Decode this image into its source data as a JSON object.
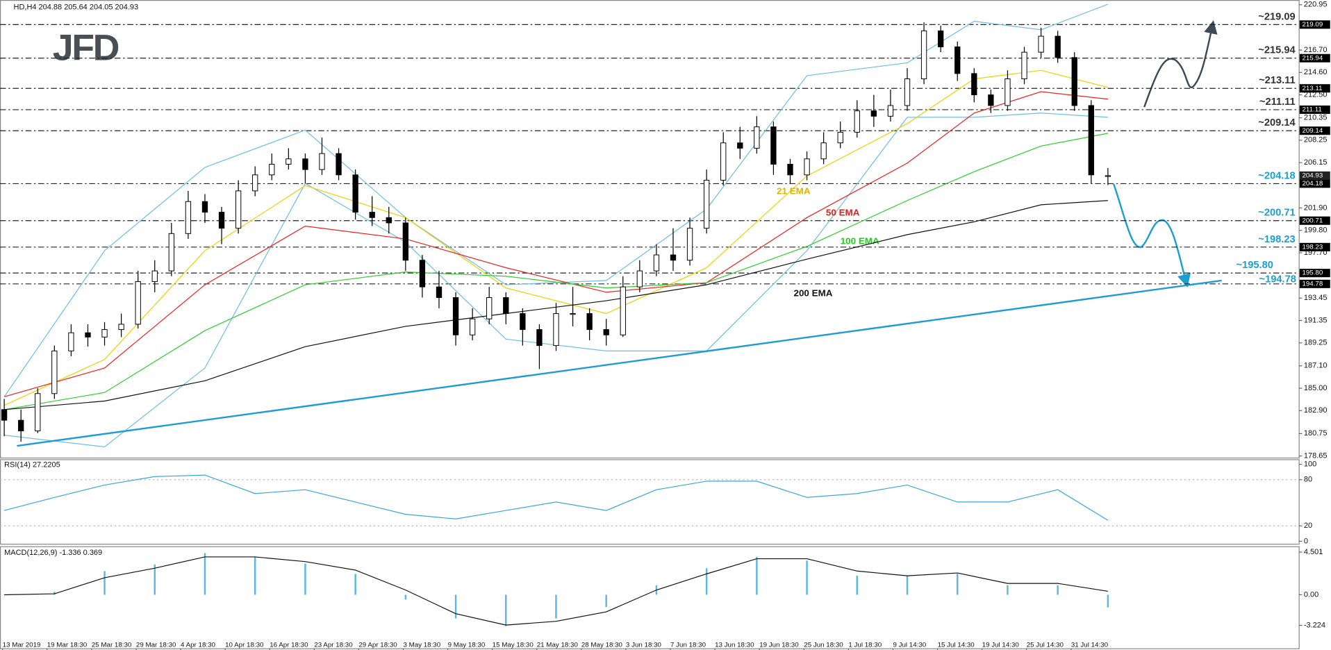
{
  "header": "HD,H4  204.88 205.64 204.05 204.93",
  "logo": "JFD",
  "chart_data": [
    {
      "type": "candlestick",
      "ohlc": [
        [
          183,
          184,
          180.5,
          182
        ],
        [
          182,
          183,
          180,
          181
        ],
        [
          181,
          185,
          180.8,
          184.5
        ],
        [
          184.5,
          189,
          184,
          188.5
        ],
        [
          188.5,
          191,
          188,
          190.2
        ],
        [
          190.2,
          191,
          188.9,
          189.8
        ],
        [
          189.8,
          191.2,
          189,
          190.5
        ],
        [
          190.5,
          192,
          189.8,
          191
        ],
        [
          191,
          196,
          190.6,
          195
        ],
        [
          195,
          197,
          194,
          196
        ],
        [
          196,
          200.5,
          195.5,
          199.5
        ],
        [
          199.5,
          203.5,
          199,
          202.5
        ],
        [
          202.5,
          203.2,
          200.5,
          201.5
        ],
        [
          201.5,
          202,
          198.5,
          200
        ],
        [
          200,
          204.5,
          199.5,
          203.5
        ],
        [
          203.5,
          205.8,
          203,
          205
        ],
        [
          205,
          207,
          204.5,
          206
        ],
        [
          206,
          207.5,
          205.5,
          206.5
        ],
        [
          206.5,
          207,
          204.2,
          205.5
        ],
        [
          205.5,
          208.5,
          205,
          207
        ],
        [
          207,
          207.5,
          204.5,
          205
        ],
        [
          205,
          205.5,
          200.8,
          201.5
        ],
        [
          201.5,
          203,
          200.2,
          201
        ],
        [
          201,
          202,
          199.5,
          200.5
        ],
        [
          200.5,
          201,
          196,
          197
        ],
        [
          197,
          197.5,
          193.5,
          194.5
        ],
        [
          194.5,
          196,
          192.5,
          193.5
        ],
        [
          193.5,
          194,
          189,
          190
        ],
        [
          190,
          192.5,
          189.5,
          191.5
        ],
        [
          191.5,
          194.5,
          191,
          193.5
        ],
        [
          193.5,
          194,
          191,
          192
        ],
        [
          192,
          192.5,
          189,
          190.5
        ],
        [
          190.5,
          191,
          186.8,
          189
        ],
        [
          189,
          193,
          188.5,
          192
        ],
        [
          192,
          194.5,
          190.8,
          192
        ],
        [
          192,
          192.5,
          189.5,
          190.5
        ],
        [
          190.5,
          191.5,
          189,
          190
        ],
        [
          190,
          195.5,
          189.8,
          194.5
        ],
        [
          194.5,
          197,
          194,
          196
        ],
        [
          196,
          198.5,
          195.5,
          197.5
        ],
        [
          197.5,
          200,
          196,
          197
        ],
        [
          197,
          201,
          196.5,
          200
        ],
        [
          200,
          205.5,
          199.5,
          204.5
        ],
        [
          204.5,
          209,
          204,
          208
        ],
        [
          208,
          209.5,
          206.5,
          207.5
        ],
        [
          207.5,
          210.5,
          207,
          209.5
        ],
        [
          209.5,
          210,
          205,
          206
        ],
        [
          206,
          206.5,
          204.2,
          205
        ],
        [
          205,
          207.2,
          204.5,
          206.5
        ],
        [
          206.5,
          209,
          206,
          208
        ],
        [
          208,
          210,
          207.5,
          209
        ],
        [
          209,
          212,
          208.5,
          211
        ],
        [
          211,
          212.5,
          209.5,
          210.5
        ],
        [
          210.5,
          213,
          210,
          211.5
        ],
        [
          211.5,
          215,
          211,
          214
        ],
        [
          214,
          219.3,
          213.5,
          218.5
        ],
        [
          218.5,
          219,
          216.5,
          217
        ],
        [
          217,
          217.5,
          213.8,
          214.5
        ],
        [
          214.5,
          215,
          211.8,
          212.5
        ],
        [
          212.5,
          213,
          210.8,
          211.5
        ],
        [
          211.5,
          214.8,
          211,
          214
        ],
        [
          214,
          217,
          213.5,
          216.5
        ],
        [
          216.5,
          218.8,
          216,
          218
        ],
        [
          218,
          218.5,
          215.5,
          216
        ],
        [
          216,
          216.5,
          211,
          211.5
        ],
        [
          211.5,
          212,
          204.2,
          205
        ],
        [
          204.88,
          205.64,
          204.05,
          204.93
        ]
      ],
      "ylim": [
        178.5,
        221
      ],
      "yticks": [
        {
          "value": 220.95,
          "label": "220.95"
        },
        {
          "value": 216.7,
          "label": "216.70"
        },
        {
          "value": 214.6,
          "label": "214.60"
        },
        {
          "value": 212.5,
          "label": "212.50"
        },
        {
          "value": 210.35,
          "label": "210.35"
        },
        {
          "value": 208.25,
          "label": "208.25"
        },
        {
          "value": 206.15,
          "label": "206.15"
        },
        {
          "value": 201.9,
          "label": "201.90"
        },
        {
          "value": 199.8,
          "label": "199.80"
        },
        {
          "value": 197.7,
          "label": "197.70"
        },
        {
          "value": 193.45,
          "label": "193.45"
        },
        {
          "value": 191.35,
          "label": "191.35"
        },
        {
          "value": 189.25,
          "label": "189.25"
        },
        {
          "value": 187.1,
          "label": "187.10"
        },
        {
          "value": 185,
          "label": "185.00"
        },
        {
          "value": 182.9,
          "label": "182.90"
        },
        {
          "value": 180.75,
          "label": "180.75"
        },
        {
          "value": 178.65,
          "label": "178.65"
        }
      ],
      "x_labels": [
        "13 Mar 2019",
        "19 Mar 18:30",
        "25 Mar 18:30",
        "29 Mar 18:30",
        "4 Apr 18:30",
        "10 Apr 18:30",
        "16 Apr 18:30",
        "23 Apr 18:30",
        "29 Apr 18:30",
        "3 May 18:30",
        "9 May 18:30",
        "15 May 18:30",
        "21 May 18:30",
        "28 May 18:30",
        "3 Jun 18:30",
        "7 Jun 18:30",
        "13 Jun 18:30",
        "19 Jun 18:30",
        "25 Jun 18:30",
        "1 Jul 18:30",
        "9 Jul 14:30",
        "15 Jul 14:30",
        "19 Jul 14:30",
        "25 Jul 14:30",
        "31 Jul 14:30"
      ],
      "overlay_x": [
        0,
        6,
        12,
        18,
        24,
        30,
        36,
        42,
        48,
        54,
        58,
        62,
        66
      ],
      "bands": {
        "color": "#6fbde6",
        "upper": [
          184.2,
          197.9,
          205.7,
          209.2,
          201,
          194.7,
          195.1,
          201.8,
          214.3,
          215.5,
          219.4,
          218.6,
          221
        ],
        "lower": [
          180.6,
          179.5,
          186.9,
          204.2,
          198.7,
          189.6,
          188.5,
          188.5,
          197.9,
          210.4,
          210.4,
          210.8,
          210.4
        ]
      },
      "overlays": [
        {
          "name": "21 EMA",
          "color": "#f0d000",
          "label_color": "#e0b400",
          "values": [
            183.4,
            187.7,
            197.9,
            204.0,
            201.0,
            194.4,
            192.0,
            196.3,
            204.9,
            209.8,
            214.0,
            214.8,
            213.2
          ]
        },
        {
          "name": "50 EMA",
          "color": "#e8231f",
          "label_color": "#e0201a",
          "values": [
            184.2,
            186.9,
            194.7,
            200.2,
            199.0,
            196.3,
            194.0,
            194.9,
            201.0,
            206.1,
            210.8,
            212.8,
            212.1
          ]
        },
        {
          "name": "100 EMA",
          "color": "#2ecc2e",
          "label_color": "#22cc22",
          "values": [
            183.0,
            184.6,
            190.4,
            194.7,
            195.9,
            195.5,
            194.4,
            194.9,
            198.3,
            202.6,
            205.3,
            207.7,
            208.9
          ]
        },
        {
          "name": "200 EMA",
          "color": "#111111",
          "label_color": "#111111",
          "values": [
            183.0,
            183.8,
            185.7,
            188.9,
            190.8,
            192.0,
            193.2,
            194.7,
            197.1,
            199.4,
            200.6,
            202.2,
            202.6
          ]
        }
      ],
      "levels": [
        {
          "value": 219.09,
          "label": "~219.09",
          "tag": "219.09",
          "color": "#333333"
        },
        {
          "value": 215.94,
          "label": "~215.94",
          "tag": "215.94",
          "color": "#333333"
        },
        {
          "value": 213.11,
          "label": "~213.11",
          "tag": "213.11",
          "color": "#333333"
        },
        {
          "value": 211.11,
          "label": "~211.11",
          "tag": "211.11",
          "color": "#333333"
        },
        {
          "value": 209.14,
          "label": "~209.14",
          "tag": "209.14",
          "color": "#333333"
        },
        {
          "value": 204.18,
          "label": "~204.18",
          "tag": "204.18",
          "color": "#1a9fd0"
        },
        {
          "value": 200.71,
          "label": "~200.71",
          "tag": "200.71",
          "color": "#1a9fd0"
        },
        {
          "value": 198.23,
          "label": "~198.23",
          "tag": "198.23",
          "color": "#1a9fd0"
        },
        {
          "value": 195.8,
          "label": "~195.80",
          "tag": "195.80",
          "color": "#1a9fd0"
        },
        {
          "value": 194.78,
          "label": "~194.78",
          "tag": "194.78",
          "color": "#1a9fd0"
        }
      ],
      "price": {
        "value": 204.93,
        "label": "204.93"
      },
      "trendline": {
        "color": "#1e9bd7",
        "x": [
          0.76,
          72.8
        ],
        "values": [
          179.6,
          195.1
        ]
      }
    },
    {
      "type": "line",
      "title": "RSI(14) 27.2205",
      "color": "#3aa6dc",
      "x": [
        0,
        3,
        6,
        9,
        12,
        15,
        18,
        21,
        24,
        27,
        30,
        33,
        36,
        39,
        42,
        45,
        48,
        51,
        54,
        57,
        60,
        63,
        66
      ],
      "values": [
        40,
        57,
        73,
        84,
        86,
        62,
        67,
        51,
        35,
        29,
        40,
        51,
        40,
        67,
        78,
        78,
        57,
        62,
        73,
        51,
        51,
        67,
        27.2
      ],
      "ylim": [
        0,
        100
      ],
      "yticks": [
        0,
        20,
        80,
        100
      ]
    },
    {
      "type": "macd",
      "title": "MACD(12,26,9) -1.336 0.369",
      "color": "#5ab7e3",
      "signal_color": "#111111",
      "x": [
        0,
        3,
        6,
        9,
        12,
        15,
        18,
        21,
        24,
        27,
        30,
        33,
        36,
        39,
        42,
        45,
        48,
        51,
        54,
        57,
        60,
        63,
        66
      ],
      "values": [
        0,
        0.3,
        2.5,
        3.2,
        4.4,
        4.0,
        3.3,
        2.2,
        -0.5,
        -2.5,
        -3.3,
        -2.5,
        -1.3,
        1.0,
        2.8,
        4.0,
        3.6,
        2.0,
        2.0,
        2.2,
        1.0,
        1.0,
        -1.336
      ],
      "signal": [
        0,
        0.1,
        1.8,
        2.8,
        4.0,
        4.0,
        3.5,
        2.6,
        0.5,
        -2.0,
        -3.2,
        -2.8,
        -1.8,
        0.5,
        2.2,
        3.8,
        3.8,
        2.5,
        2.0,
        2.3,
        1.2,
        1.2,
        0.369
      ],
      "ylim": [
        -5.65,
        4.94
      ],
      "yticks": [
        {
          "value": 4.501,
          "label": "4.501"
        },
        {
          "value": 0,
          "label": "0.00"
        },
        {
          "value": -3.224,
          "label": "-3.224"
        }
      ]
    }
  ]
}
